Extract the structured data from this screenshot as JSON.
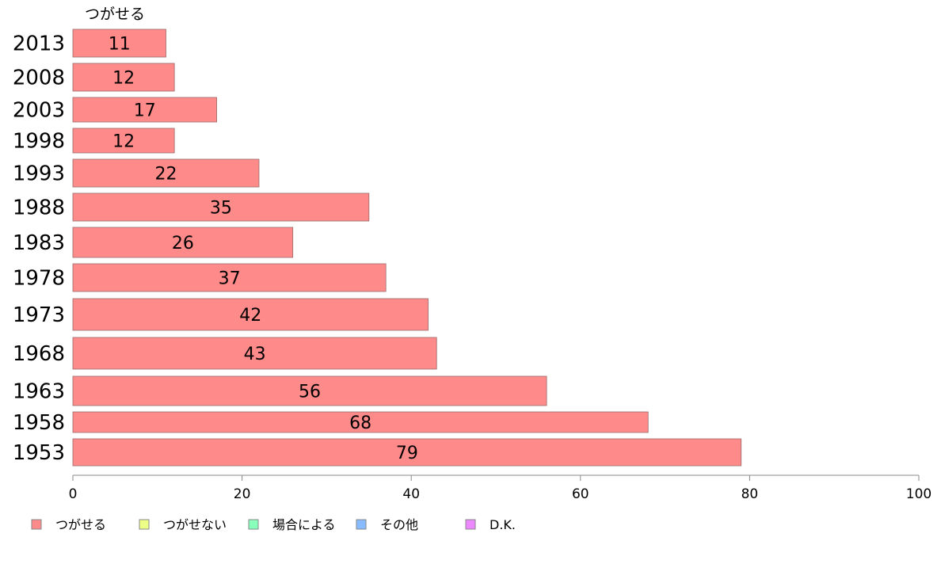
{
  "chart_data": {
    "type": "bar",
    "orientation": "horizontal",
    "series_title": "つがせる",
    "categories": [
      "2013",
      "2008",
      "2003",
      "1998",
      "1993",
      "1988",
      "1983",
      "1978",
      "1973",
      "1968",
      "1963",
      "1958",
      "1953"
    ],
    "values": [
      11,
      12,
      17,
      12,
      22,
      35,
      26,
      37,
      42,
      43,
      56,
      68,
      79
    ],
    "xlim": [
      0,
      100
    ],
    "xticks": [
      0,
      20,
      40,
      60,
      80,
      100
    ],
    "grid": false,
    "legend_position": "bottom-left",
    "legend": [
      {
        "label": "つがせる",
        "color": "#ff8a8a"
      },
      {
        "label": "つがせない",
        "color": "#eeff88"
      },
      {
        "label": "場合による",
        "color": "#88ffbb"
      },
      {
        "label": "その他",
        "color": "#88bbff"
      },
      {
        "label": "D.K.",
        "color": "#ee88ff"
      }
    ]
  }
}
